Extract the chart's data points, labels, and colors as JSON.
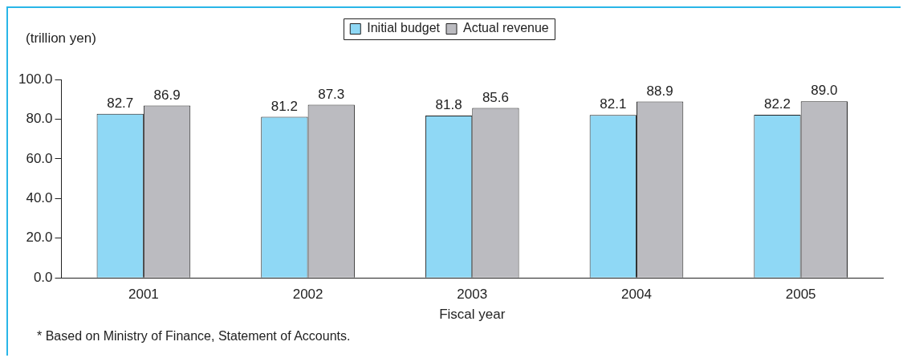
{
  "chart_data": {
    "type": "bar",
    "ylabel": "(trillion yen)",
    "xlabel": "Fiscal year",
    "categories": [
      "2001",
      "2002",
      "2003",
      "2004",
      "2005"
    ],
    "series": [
      {
        "name": "Initial budget",
        "color": "#8fd8f5",
        "values": [
          82.7,
          81.2,
          81.8,
          82.1,
          82.2
        ],
        "value_labels": [
          "82.7",
          "81.2",
          "81.8",
          "82.1",
          "82.2"
        ]
      },
      {
        "name": "Actual revenue",
        "color": "#bbbbc0",
        "values": [
          86.9,
          87.3,
          85.6,
          88.9,
          89.0
        ],
        "value_labels": [
          "86.9",
          "87.3",
          "85.6",
          "88.9",
          "89.0"
        ]
      }
    ],
    "ylim": [
      0,
      100
    ],
    "yticks": [
      {
        "value": 0,
        "label": "0.0"
      },
      {
        "value": 20,
        "label": "20.0"
      },
      {
        "value": 40,
        "label": "40.0"
      },
      {
        "value": 60,
        "label": "60.0"
      },
      {
        "value": 80,
        "label": "80.0"
      },
      {
        "value": 100,
        "label": "100.0"
      }
    ],
    "grid": false,
    "legend": "top",
    "annotations": [
      "* Based on Ministry of Finance, Statement of Accounts."
    ]
  }
}
